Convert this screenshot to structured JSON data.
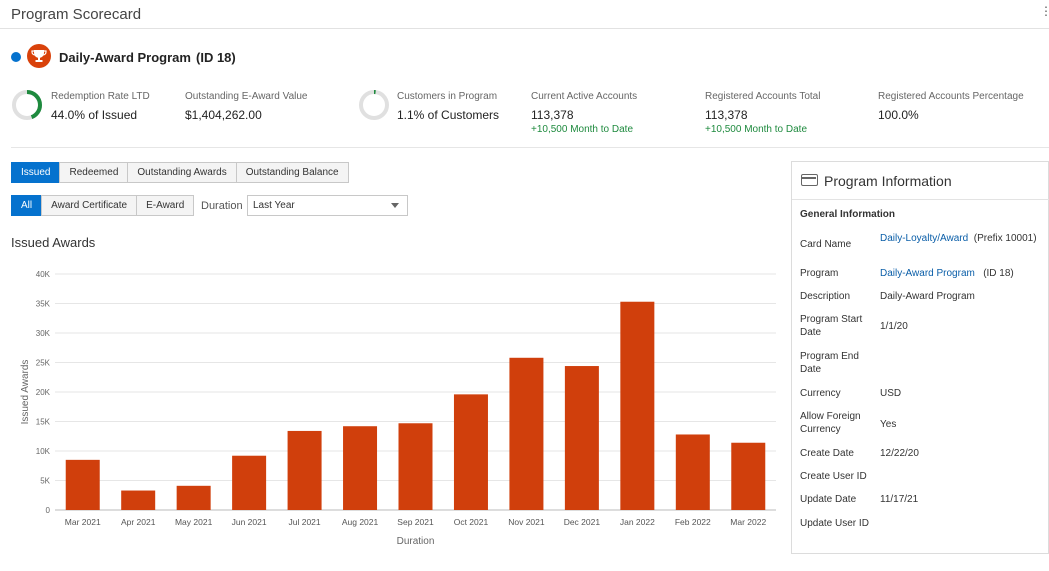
{
  "page": {
    "title": "Program Scorecard",
    "menu_icon": "kebab-menu-icon"
  },
  "program": {
    "name": "Daily-Award Program",
    "id_label": "(ID 18)",
    "icon": "trophy-icon",
    "status_color": "#0572ce",
    "icon_color": "#d9420b"
  },
  "metrics": {
    "redemption": {
      "label": "Redemption Rate LTD",
      "value": "44.0% of Issued",
      "percent": 44.0
    },
    "outstanding": {
      "label": "Outstanding E-Award Value",
      "value": "$1,404,262.00"
    },
    "customers": {
      "label": "Customers in Program",
      "value": "1.1% of Customers",
      "percent": 1.1
    },
    "active": {
      "label": "Current Active Accounts",
      "value": "113,378",
      "sub": "+10,500 Month to Date"
    },
    "registered": {
      "label": "Registered Accounts Total",
      "value": "113,378",
      "sub": "+10,500 Month to Date"
    },
    "registered_pct": {
      "label": "Registered Accounts Percentage",
      "value": "100.0%"
    }
  },
  "tabs": [
    "Issued",
    "Redeemed",
    "Outstanding Awards",
    "Outstanding Balance"
  ],
  "active_tab": "Issued",
  "filters": {
    "buttons": [
      "All",
      "Award Certificate",
      "E-Award"
    ],
    "active": "All",
    "duration_label": "Duration",
    "duration_value": "Last Year"
  },
  "chart_section_title": "Issued Awards",
  "chart_data": {
    "type": "bar",
    "categories": [
      "Mar 2021",
      "Apr 2021",
      "May 2021",
      "Jun 2021",
      "Jul 2021",
      "Aug 2021",
      "Sep 2021",
      "Oct 2021",
      "Nov 2021",
      "Dec 2021",
      "Jan 2022",
      "Feb 2022",
      "Mar 2022"
    ],
    "values": [
      8500,
      3300,
      4100,
      9200,
      13400,
      14200,
      14700,
      19600,
      25800,
      24400,
      35300,
      12800,
      11400
    ],
    "yticks": [
      "0",
      "5K",
      "10K",
      "15K",
      "20K",
      "25K",
      "30K",
      "35K",
      "40K"
    ],
    "ylim": [
      0,
      40000
    ],
    "xlabel": "Duration",
    "ylabel": "Issued Awards",
    "color": "#d03f0c",
    "grid": true
  },
  "info": {
    "title": "Program Information",
    "section": "General Information",
    "rows": [
      {
        "label": "Card Name",
        "value": "Daily-Loyalty/Award",
        "extra": "(Prefix 10001)"
      },
      {
        "label": "Program",
        "value": "Daily-Award Program",
        "extra": "(ID 18)"
      },
      {
        "label": "Description",
        "value": "Daily-Award Program"
      },
      {
        "label": "Program Start Date",
        "value": "1/1/20"
      },
      {
        "label": "Program End Date",
        "value": ""
      },
      {
        "label": "Currency",
        "value": "USD"
      },
      {
        "label": "Allow Foreign Currency",
        "value": "Yes"
      },
      {
        "label": "Create Date",
        "value": "12/22/20"
      },
      {
        "label": "Create User ID",
        "value": ""
      },
      {
        "label": "Update Date",
        "value": "11/17/21"
      },
      {
        "label": "Update User ID",
        "value": ""
      }
    ]
  }
}
